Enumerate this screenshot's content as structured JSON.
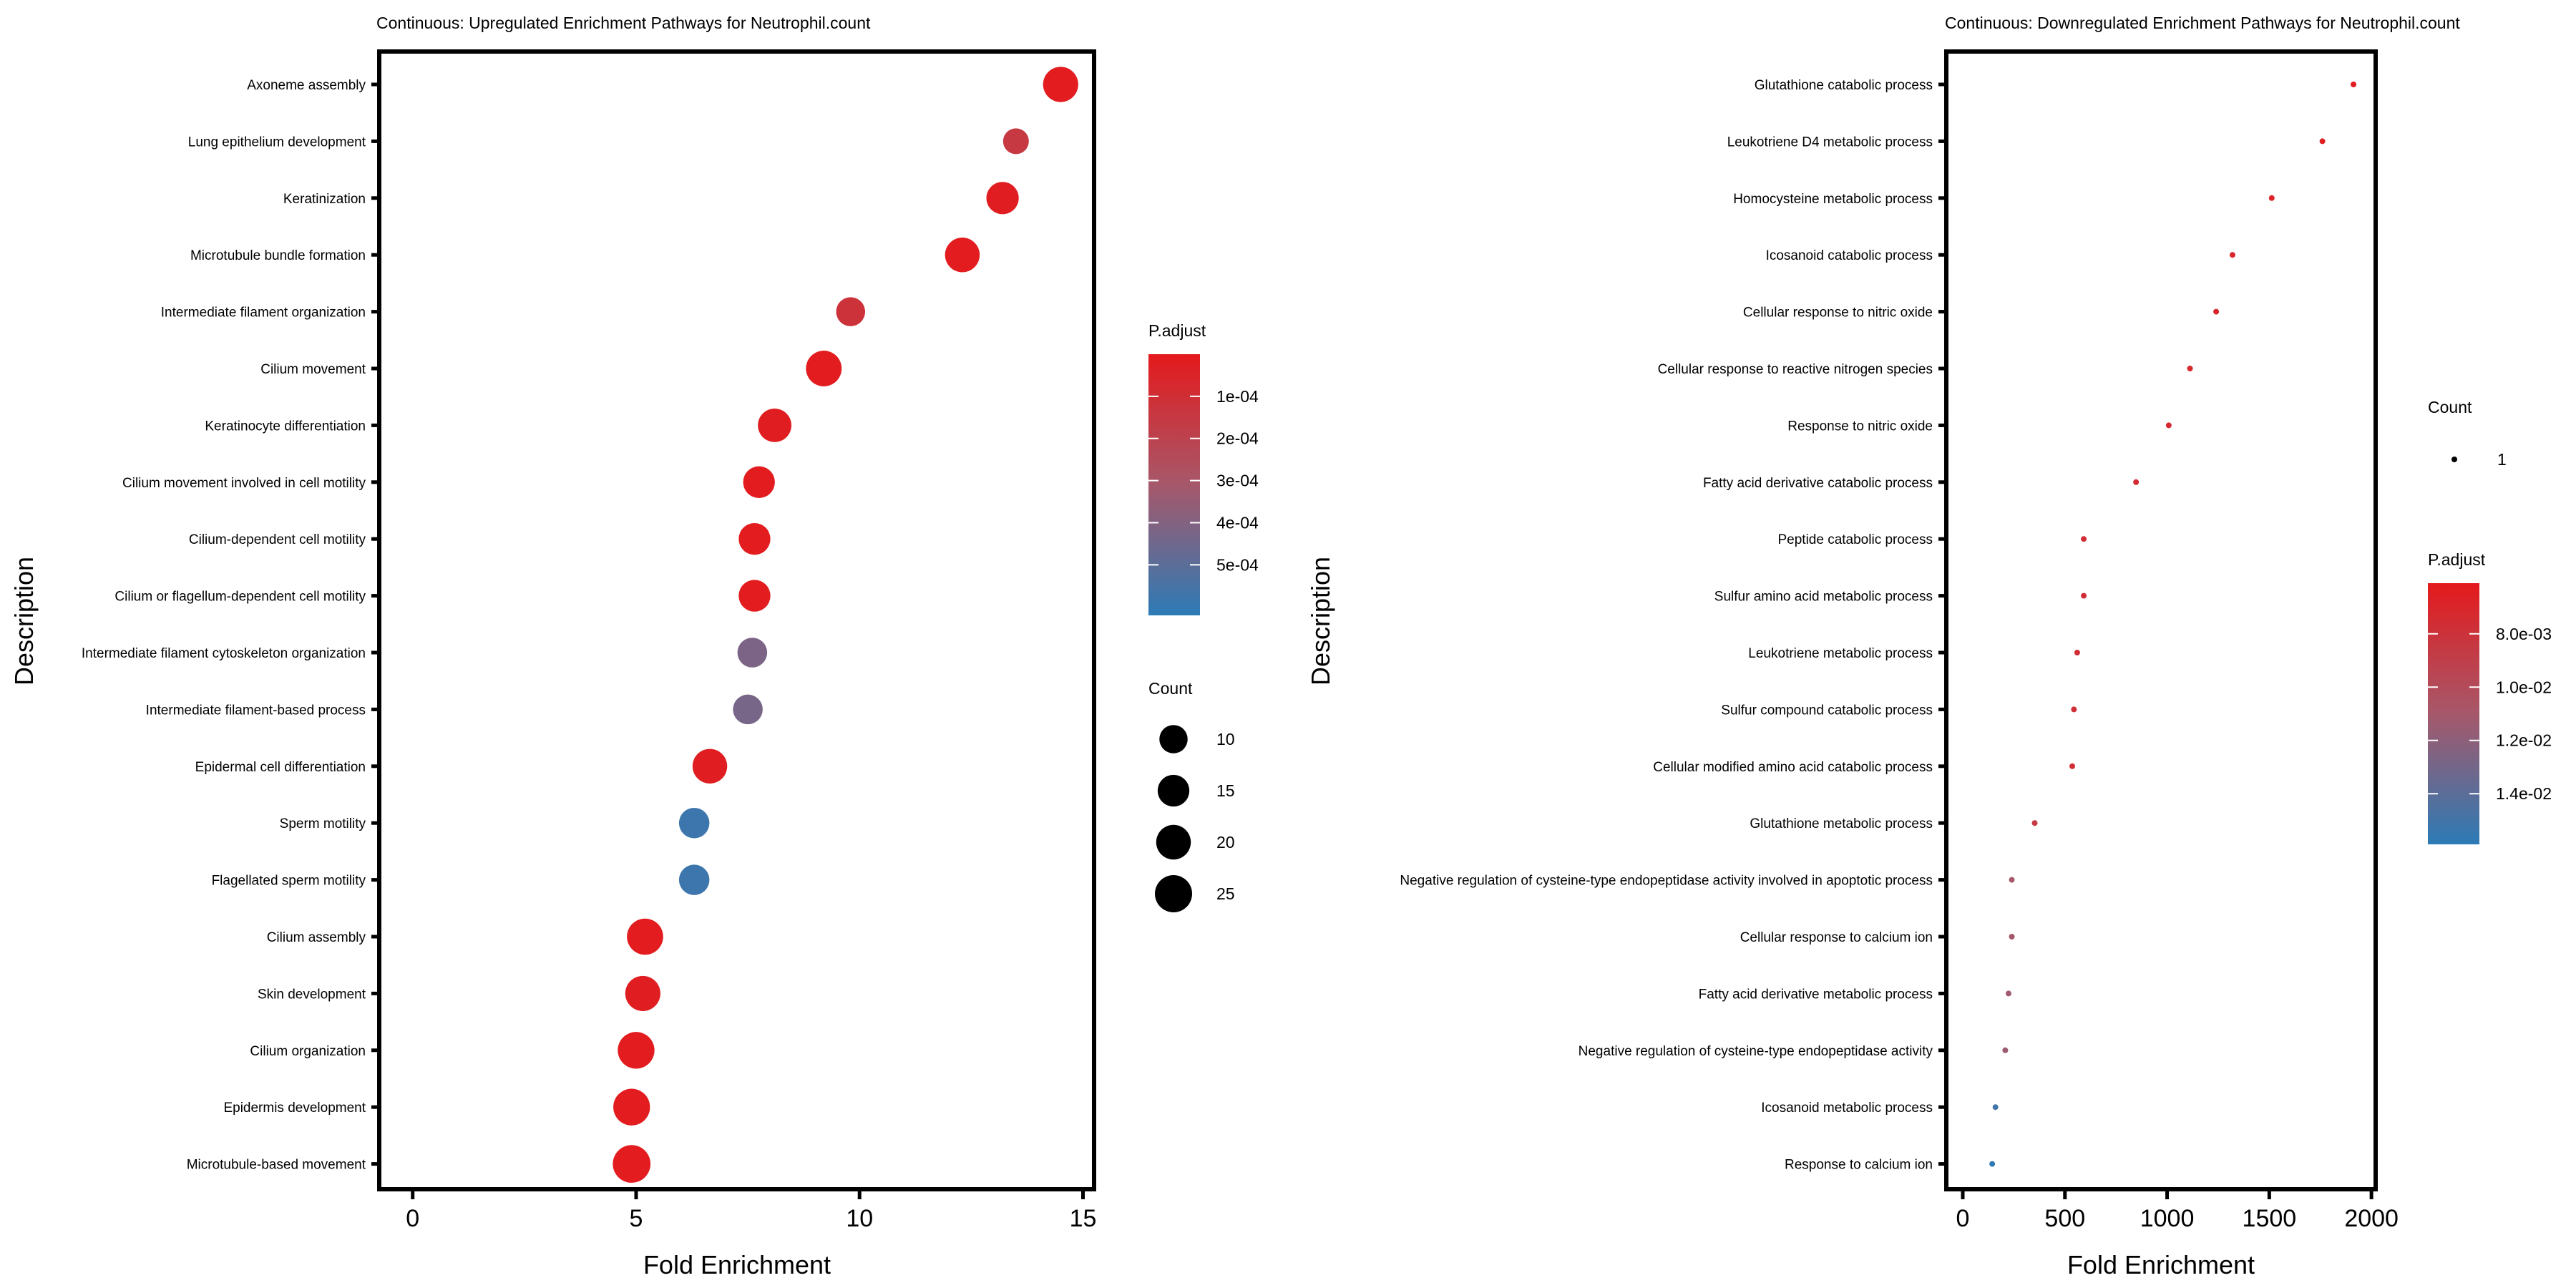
{
  "chart_data": [
    {
      "type": "scatter",
      "subtype": "dot-plot",
      "title": "Continuous: Upregulated Enrichment Pathways for Neutrophil.count",
      "xlabel": "Fold Enrichment",
      "ylabel": "Description",
      "xlim": [
        -0.7,
        15.2
      ],
      "xticks": [
        0,
        5,
        10,
        15
      ],
      "grid": false,
      "categories": [
        "Axoneme assembly",
        "Lung epithelium development",
        "Keratinization",
        "Microtubule bundle formation",
        "Intermediate filament organization",
        "Cilium movement",
        "Keratinocyte differentiation",
        "Cilium movement involved in cell motility",
        "Cilium-dependent cell motility",
        "Cilium or flagellum-dependent cell motility",
        "Intermediate filament cytoskeleton organization",
        "Intermediate filament-based process",
        "Epidermal cell differentiation",
        "Sperm motility",
        "Flagellated sperm motility",
        "Cilium assembly",
        "Skin development",
        "Cilium organization",
        "Epidermis development",
        "Microtubule-based movement"
      ],
      "fold_enrichment": [
        14.5,
        13.5,
        13.2,
        12.3,
        9.8,
        9.2,
        8.1,
        7.75,
        7.65,
        7.65,
        7.6,
        7.5,
        6.65,
        6.3,
        6.3,
        5.2,
        5.15,
        5.0,
        4.9,
        4.9
      ],
      "count": [
        21,
        7,
        16,
        20,
        11,
        22,
        18,
        15,
        15,
        15,
        12,
        12,
        20,
        13,
        13,
        23,
        21,
        24,
        24,
        26
      ],
      "p_adjust": [
        1e-05,
        0.00015,
        2e-05,
        1e-05,
        0.00012,
        1e-05,
        2e-05,
        1e-05,
        1e-05,
        1e-05,
        0.00042,
        0.00043,
        2e-05,
        0.00058,
        0.00058,
        1e-05,
        2e-05,
        1e-05,
        1e-05,
        1e-05
      ],
      "color_legend": {
        "title": "P.adjust",
        "range": [
          0.0,
          0.00062
        ],
        "ticks": [
          0.0001,
          0.0002,
          0.0003,
          0.0004,
          0.0005
        ],
        "tick_labels": [
          "1e-04",
          "2e-04",
          "3e-04",
          "4e-04",
          "5e-04"
        ],
        "low_color": "#e41a1c",
        "high_color": "#2c7bb6"
      },
      "size_legend": {
        "title": "Count",
        "values": [
          10,
          15,
          20,
          25
        ],
        "labels": [
          "10",
          "15",
          "20",
          "25"
        ]
      },
      "legend_placement": "right"
    },
    {
      "type": "scatter",
      "subtype": "dot-plot",
      "title": "Continuous: Downregulated Enrichment Pathways for Neutrophil.count",
      "xlabel": "Fold Enrichment",
      "ylabel": "Description",
      "xlim": [
        -70,
        2010
      ],
      "xticks": [
        0,
        500,
        1000,
        1500,
        2000
      ],
      "grid": false,
      "categories": [
        "Glutathione catabolic process",
        "Leukotriene D4 metabolic process",
        "Homocysteine metabolic process",
        "Icosanoid catabolic process",
        "Cellular response to nitric oxide",
        "Cellular response to reactive nitrogen species",
        "Response to nitric oxide",
        "Fatty acid derivative catabolic process",
        "Peptide catabolic process",
        "Sulfur amino acid metabolic process",
        "Leukotriene metabolic process",
        "Sulfur compound catabolic process",
        "Cellular modified amino acid catabolic process",
        "Glutathione metabolic process",
        "Negative regulation of cysteine-type endopeptidase activity involved in apoptotic process",
        "Cellular response to calcium ion",
        "Fatty acid derivative metabolic process",
        "Negative regulation of cysteine-type endopeptidase activity",
        "Icosanoid metabolic process",
        "Response to calcium ion"
      ],
      "fold_enrichment": [
        1912,
        1760,
        1512,
        1320,
        1240,
        1112,
        1008,
        848,
        592,
        592,
        560,
        544,
        536,
        352,
        240,
        240,
        224,
        208,
        160,
        144
      ],
      "count": [
        1,
        1,
        1,
        1,
        1,
        1,
        1,
        1,
        1,
        1,
        1,
        1,
        1,
        1,
        1,
        1,
        1,
        1,
        1,
        1
      ],
      "p_adjust": [
        0.0062,
        0.0065,
        0.0068,
        0.007,
        0.007,
        0.0072,
        0.0072,
        0.0074,
        0.0076,
        0.0076,
        0.0077,
        0.0077,
        0.0077,
        0.0085,
        0.011,
        0.011,
        0.0112,
        0.0114,
        0.015,
        0.0158
      ],
      "color_legend": {
        "title": "P.adjust",
        "range": [
          0.0061,
          0.0159
        ],
        "ticks": [
          0.008,
          0.01,
          0.012,
          0.014
        ],
        "tick_labels": [
          "8.0e-03",
          "1.0e-02",
          "1.2e-02",
          "1.4e-02"
        ],
        "low_color": "#e41a1c",
        "high_color": "#2c7bb6"
      },
      "size_legend": {
        "title": "Count",
        "values": [
          1
        ],
        "labels": [
          "1"
        ]
      },
      "legend_placement": "right"
    }
  ]
}
